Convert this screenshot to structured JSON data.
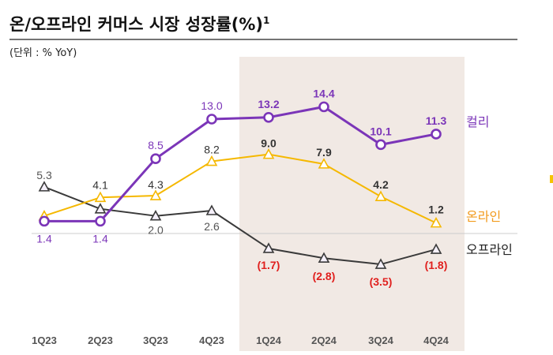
{
  "chart_data": {
    "type": "line",
    "title": "온/오프라인 커머스 시장 성장률(%)",
    "title_superscript": "1",
    "unit_note": "(단위 : % YoY)",
    "categories": [
      "1Q23",
      "2Q23",
      "3Q23",
      "4Q23",
      "1Q24",
      "2Q24",
      "3Q24",
      "4Q24"
    ],
    "highlight_categories": [
      "1Q24",
      "2Q24",
      "3Q24",
      "4Q24"
    ],
    "ylim": [
      -5,
      16
    ],
    "series": [
      {
        "name": "컬리",
        "values": [
          1.4,
          1.4,
          8.5,
          13.0,
          13.2,
          14.4,
          10.1,
          11.3
        ],
        "labels": [
          "1.4",
          "1.4",
          "8.5",
          "13.0",
          "13.2",
          "14.4",
          "10.1",
          "11.3"
        ],
        "color": "#7b35b8",
        "marker": "circle"
      },
      {
        "name": "온라인",
        "values": [
          2.0,
          4.1,
          4.3,
          8.2,
          9.0,
          7.9,
          4.2,
          1.2
        ],
        "labels": [
          "",
          "4.1",
          "4.3",
          "8.2",
          "9.0",
          "7.9",
          "4.2",
          "1.2"
        ],
        "color": "#f5b800",
        "label_color": "#f29a1c",
        "marker": "triangle"
      },
      {
        "name": "오프라인",
        "values": [
          5.3,
          2.8,
          2.0,
          2.6,
          -1.7,
          -2.8,
          -3.5,
          -1.8
        ],
        "labels": [
          "5.3",
          "",
          "2.0",
          "2.6",
          "(1.7)",
          "(2.8)",
          "(3.5)",
          "(1.8)"
        ],
        "color": "#3a3a3a",
        "marker": "triangle-outline"
      }
    ],
    "colors": {
      "highlight_bg": "#f1e9e4",
      "zero_line": "#cccccc",
      "title_rule": "#222222",
      "negative_label": "#e0201e",
      "muted_label": "#555555",
      "label": "#333333"
    }
  }
}
